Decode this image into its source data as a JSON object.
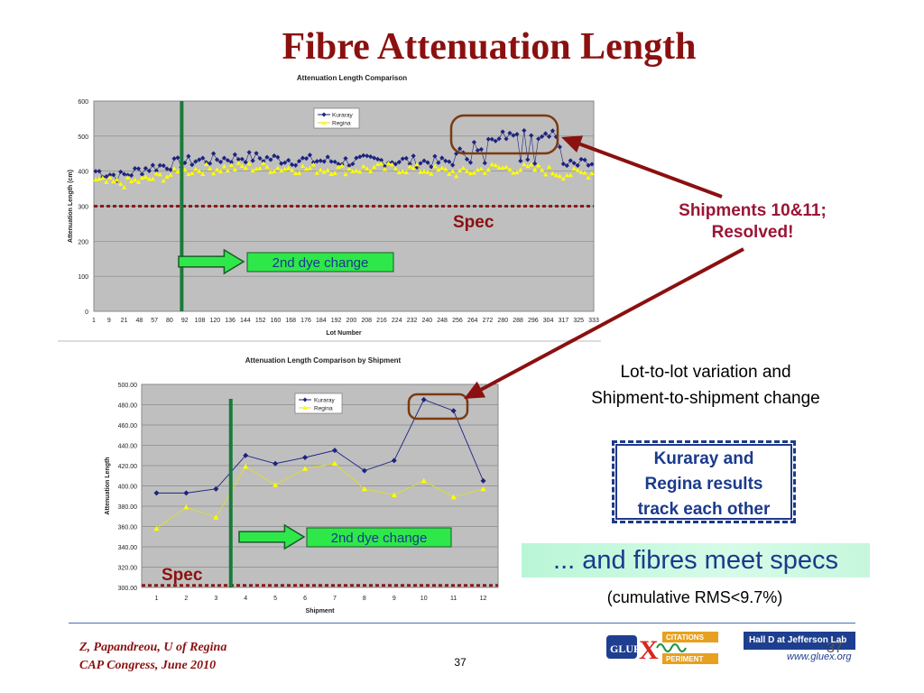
{
  "slide": {
    "title": "Fibre Attenuation Length",
    "footer_author": "Z, Papandreou, U of Regina",
    "footer_event": "CAP Congress, June 2010",
    "page_number": "37",
    "corner_number": "37"
  },
  "annotations": {
    "shipments_callout_line1": "Shipments 10&11;",
    "shipments_callout_line2": "Resolved!",
    "variation_line1": "Lot-to-lot variation and",
    "variation_line2": "Shipment-to-shipment change",
    "track_line1": "Kuraray and",
    "track_line2": "Regina results",
    "track_line3": "track each other",
    "meet_specs": "... and fibres meet specs",
    "cumulative_rms": "(cumulative RMS<9.7%)",
    "spec_label_top": "Spec",
    "spec_label_bottom": "Spec",
    "dye_change_top": "2nd dye change",
    "dye_change_bottom": "2nd dye change"
  },
  "logos": {
    "gluex_text": "GLUE",
    "gluex_x": "X",
    "gluex_citations": "CITATIONS",
    "gluex_periment": "PERIMENT",
    "halld_text": "Hall D at Jefferson Lab",
    "halld_url": "www.gluex.org"
  },
  "colors": {
    "title": "#8b1010",
    "kuraray": "#1c237e",
    "regina": "#ffff00",
    "spec_line": "#8b1a1a",
    "dye_line": "#1a7a3a",
    "arrow_fill": "#2ee84a",
    "highlight_oval": "#7b3a10",
    "callout_arrow": "#8b1010",
    "plot_bg": "#bfbfbf"
  },
  "chart_data": [
    {
      "type": "line",
      "title": "Attenuation Length Comparison",
      "xlabel": "Lot Number",
      "ylabel": "Attenuation Length (cm)",
      "ylim": [
        0,
        600
      ],
      "yticks": [
        "0",
        "100",
        "200",
        "300",
        "400",
        "500",
        "600"
      ],
      "xticks": [
        "1",
        "9",
        "21",
        "48",
        "57",
        "80",
        "92",
        "108",
        "120",
        "136",
        "144",
        "152",
        "160",
        "168",
        "176",
        "184",
        "192",
        "200",
        "208",
        "216",
        "224",
        "232",
        "240",
        "248",
        "256",
        "264",
        "272",
        "280",
        "288",
        "296",
        "304",
        "317",
        "325",
        "333"
      ],
      "grid": true,
      "legend": "top-right",
      "spec_value": 300,
      "dye_change_tick_index": 5.8,
      "series": [
        {
          "name": "Kuraray",
          "marker": "diamond",
          "profile": [
            [
              0,
              400
            ],
            [
              0.05,
              385
            ],
            [
              0.1,
              408
            ],
            [
              0.2,
              430
            ],
            [
              0.3,
              440
            ],
            [
              0.4,
              432
            ],
            [
              0.5,
              428
            ],
            [
              0.6,
              430
            ],
            [
              0.7,
              425
            ],
            [
              0.72,
              430
            ],
            [
              0.74,
              460
            ],
            [
              0.78,
              480
            ],
            [
              0.8,
              500
            ],
            [
              0.88,
              510
            ],
            [
              0.9,
              505
            ],
            [
              0.93,
              500
            ],
            [
              0.94,
              415
            ],
            [
              1.0,
              420
            ]
          ]
        },
        {
          "name": "Regina",
          "marker": "triangle",
          "profile": [
            [
              0,
              370
            ],
            [
              0.05,
              365
            ],
            [
              0.1,
              375
            ],
            [
              0.2,
              405
            ],
            [
              0.3,
              412
            ],
            [
              0.4,
              408
            ],
            [
              0.5,
              405
            ],
            [
              0.6,
              410
            ],
            [
              0.7,
              400
            ],
            [
              0.74,
              395
            ],
            [
              0.8,
              410
            ],
            [
              0.9,
              405
            ],
            [
              0.94,
              392
            ],
            [
              1.0,
              395
            ]
          ]
        }
      ]
    },
    {
      "type": "line",
      "title": "Attenuation Length Comparison by Shipment",
      "xlabel": "Shipment",
      "ylabel": "Attenuation Length",
      "categories": [
        "1",
        "2",
        "3",
        "4",
        "5",
        "6",
        "7",
        "8",
        "9",
        "10",
        "11",
        "12"
      ],
      "ylim": [
        300,
        500
      ],
      "yticks": [
        "300.00",
        "320.00",
        "340.00",
        "360.00",
        "380.00",
        "400.00",
        "420.00",
        "440.00",
        "460.00",
        "480.00",
        "500.00"
      ],
      "grid": true,
      "legend": "top-center",
      "spec_value": 302,
      "dye_change_between": [
        3,
        4
      ],
      "series": [
        {
          "name": "Kuraray",
          "marker": "diamond",
          "values": [
            393,
            393,
            397,
            430,
            422,
            428,
            435,
            415,
            425,
            485,
            474,
            405
          ]
        },
        {
          "name": "Regina",
          "marker": "triangle",
          "values": [
            358,
            379,
            369,
            419,
            401,
            417,
            422,
            397,
            391,
            405,
            389,
            397
          ]
        }
      ]
    }
  ]
}
